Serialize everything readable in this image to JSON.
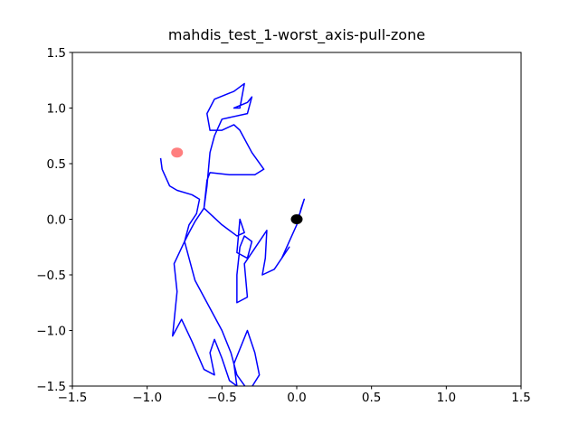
{
  "chart_data": {
    "type": "line",
    "title": "mahdis_test_1-worst_axis-pull-zone",
    "xlim": [
      -1.5,
      1.5
    ],
    "ylim": [
      -1.5,
      1.5
    ],
    "xticks": [
      {
        "value": -1.5,
        "label": "−1.5"
      },
      {
        "value": -1.0,
        "label": "−1.0"
      },
      {
        "value": -0.5,
        "label": "−0.5"
      },
      {
        "value": 0.0,
        "label": "0.0"
      },
      {
        "value": 0.5,
        "label": "0.5"
      },
      {
        "value": 1.0,
        "label": "1.0"
      },
      {
        "value": 1.5,
        "label": "1.5"
      }
    ],
    "yticks": [
      {
        "value": -1.5,
        "label": "−1.5"
      },
      {
        "value": -1.0,
        "label": "−1.0"
      },
      {
        "value": -0.5,
        "label": "−0.5"
      },
      {
        "value": 0.0,
        "label": "0.0"
      },
      {
        "value": 0.5,
        "label": "0.5"
      },
      {
        "value": 1.0,
        "label": "1.0"
      },
      {
        "value": 1.5,
        "label": "1.5"
      }
    ],
    "series": [
      {
        "color": "#0000ff",
        "x": [
          -0.91,
          -0.9,
          -0.85,
          -0.8,
          -0.7,
          -0.65,
          -0.67,
          -0.72,
          -0.75,
          -0.82,
          -0.8,
          -0.83,
          -0.77,
          -0.7,
          -0.62,
          -0.55,
          -0.58,
          -0.55,
          -0.5,
          -0.45,
          -0.4,
          -0.42,
          -0.33,
          -0.28,
          -0.25,
          -0.32,
          -0.4,
          -0.44,
          -0.5,
          -0.6,
          -0.68,
          -0.72,
          -0.75,
          -0.72,
          -0.68,
          -0.62,
          -0.6,
          -0.58,
          -0.45,
          -0.28,
          -0.22,
          -0.3,
          -0.38,
          -0.42,
          -0.5,
          -0.58,
          -0.6,
          -0.55,
          -0.42,
          -0.35,
          -0.38,
          -0.42,
          -0.33,
          -0.3,
          -0.33,
          -0.5,
          -0.55,
          -0.58,
          -0.6,
          -0.62,
          -0.5,
          -0.4,
          -0.35,
          -0.38,
          -0.4,
          -0.33,
          -0.3,
          -0.35,
          -0.38,
          -0.4,
          -0.4,
          -0.33,
          -0.35,
          -0.3,
          -0.2,
          -0.21,
          -0.23,
          -0.15,
          -0.05,
          -0.1,
          -0.05,
          0.0,
          0.03,
          0.05,
          0.02,
          0.0
        ],
        "values": [
          0.55,
          0.45,
          0.3,
          0.26,
          0.22,
          0.18,
          0.05,
          -0.05,
          -0.2,
          -0.4,
          -0.65,
          -1.05,
          -0.9,
          -1.1,
          -1.35,
          -1.4,
          -1.2,
          -1.08,
          -1.25,
          -1.45,
          -1.5,
          -1.3,
          -1.0,
          -1.2,
          -1.4,
          -1.55,
          -1.4,
          -1.2,
          -1.0,
          -0.75,
          -0.55,
          -0.35,
          -0.2,
          -0.12,
          -0.02,
          0.1,
          0.35,
          0.42,
          0.4,
          0.4,
          0.45,
          0.6,
          0.8,
          0.85,
          0.8,
          0.8,
          0.95,
          1.08,
          1.15,
          1.22,
          1.0,
          1.0,
          1.05,
          1.1,
          0.95,
          0.9,
          0.75,
          0.6,
          0.3,
          0.1,
          -0.05,
          -0.15,
          -0.12,
          0.0,
          -0.3,
          -0.35,
          -0.2,
          -0.15,
          -0.25,
          -0.5,
          -0.75,
          -0.7,
          -0.4,
          -0.3,
          -0.1,
          -0.35,
          -0.5,
          -0.45,
          -0.25,
          -0.35,
          -0.2,
          -0.05,
          0.1,
          0.18,
          0.05,
          0.0
        ]
      }
    ],
    "markers": [
      {
        "x": -0.8,
        "y": 0.6,
        "color": "#ff0000",
        "alpha": 0.5
      },
      {
        "x": 0.0,
        "y": 0.0,
        "color": "#000000",
        "alpha": 1
      }
    ]
  }
}
